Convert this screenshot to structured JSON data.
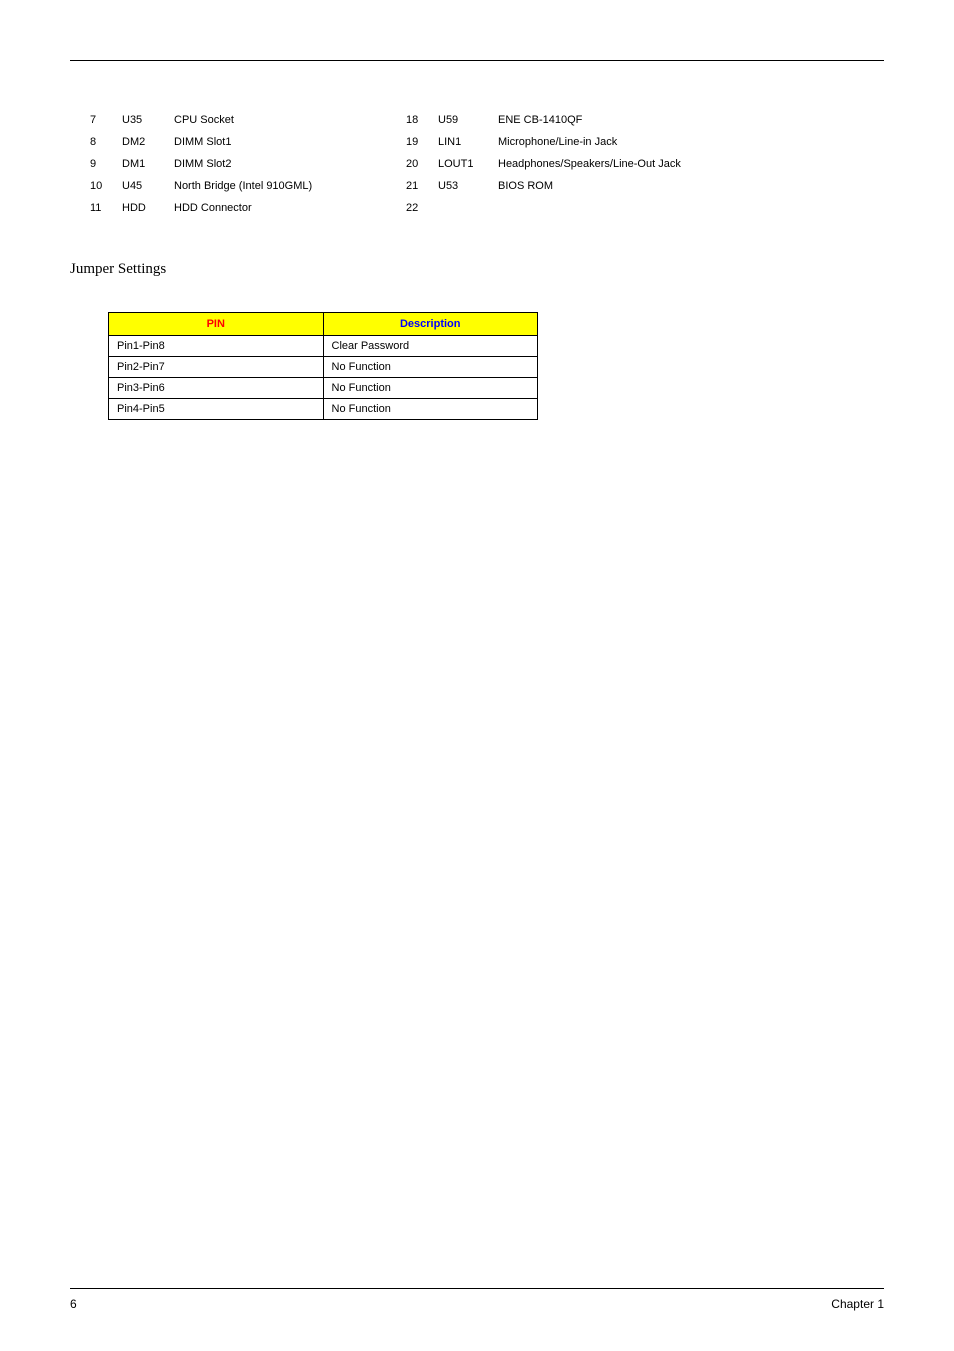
{
  "connector_left": [
    {
      "num": "7",
      "ref": "U35",
      "desc": "CPU Socket"
    },
    {
      "num": "8",
      "ref": "DM2",
      "desc": "DIMM Slot1"
    },
    {
      "num": "9",
      "ref": "DM1",
      "desc": "DIMM Slot2"
    },
    {
      "num": "10",
      "ref": "U45",
      "desc": "North Bridge (Intel 910GML)"
    },
    {
      "num": "11",
      "ref": "HDD",
      "desc": "HDD Connector"
    }
  ],
  "connector_right": [
    {
      "num": "18",
      "ref": "U59",
      "desc": "ENE CB-1410QF"
    },
    {
      "num": "19",
      "ref": "LIN1",
      "desc": "Microphone/Line-in Jack"
    },
    {
      "num": "20",
      "ref": "LOUT1",
      "desc": "Headphones/Speakers/Line-Out Jack"
    },
    {
      "num": "21",
      "ref": "U53",
      "desc": "BIOS ROM"
    },
    {
      "num": "22",
      "ref": "",
      "desc": ""
    }
  ],
  "section_heading": "Jumper Settings",
  "jumper_headers": {
    "pin": "PIN",
    "desc": "Description"
  },
  "jumper_rows": [
    {
      "pin": "Pin1-Pin8",
      "desc": "Clear Password"
    },
    {
      "pin": "Pin2-Pin7",
      "desc": "No Function"
    },
    {
      "pin": "Pin3-Pin6",
      "desc": "No Function"
    },
    {
      "pin": "Pin4-Pin5",
      "desc": "No Function"
    }
  ],
  "footer": {
    "page": "6",
    "chapter": "Chapter 1"
  }
}
